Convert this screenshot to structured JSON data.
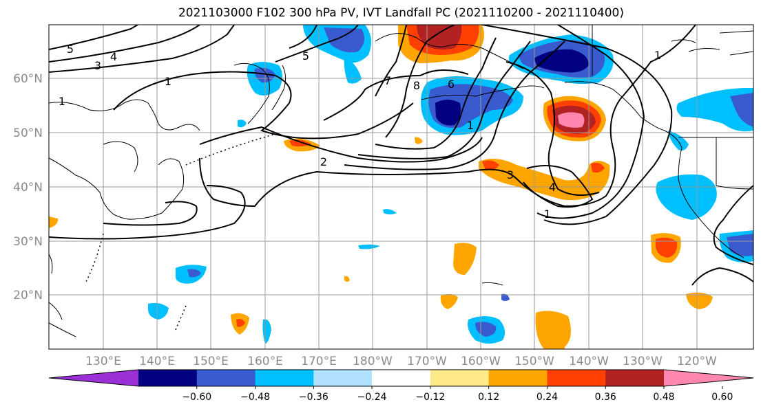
{
  "title": "2021103000 F102 300 hPa PV, IVT Landfall PC (2021110200 - 2021110400)",
  "lat_labels": [
    "60°N",
    "50°N",
    "40°N",
    "30°N",
    "20°N"
  ],
  "lon_labels": [
    "130°E",
    "140°E",
    "150°E",
    "160°E",
    "170°E",
    "180°W",
    "170°W",
    "160°W",
    "150°W",
    "140°W",
    "130°W",
    "120°W"
  ],
  "contour_labels": [
    "5",
    "4",
    "3",
    "1",
    "1",
    "5",
    "7",
    "8",
    "6",
    "2",
    "3",
    "4",
    "1",
    "1",
    "1"
  ],
  "colorbar": {
    "colors": [
      "#9b30d6",
      "#000080",
      "#3a5bd0",
      "#00bfff",
      "#b0e2ff",
      "#ffffff",
      "#ffea8a",
      "#ffa500",
      "#ff4000",
      "#b22222",
      "#ff88b0"
    ],
    "tick_labels": [
      "−0.60",
      "−0.48",
      "−0.36",
      "−0.24",
      "−0.12",
      "0.12",
      "0.24",
      "0.36",
      "0.48",
      "0.60"
    ]
  }
}
